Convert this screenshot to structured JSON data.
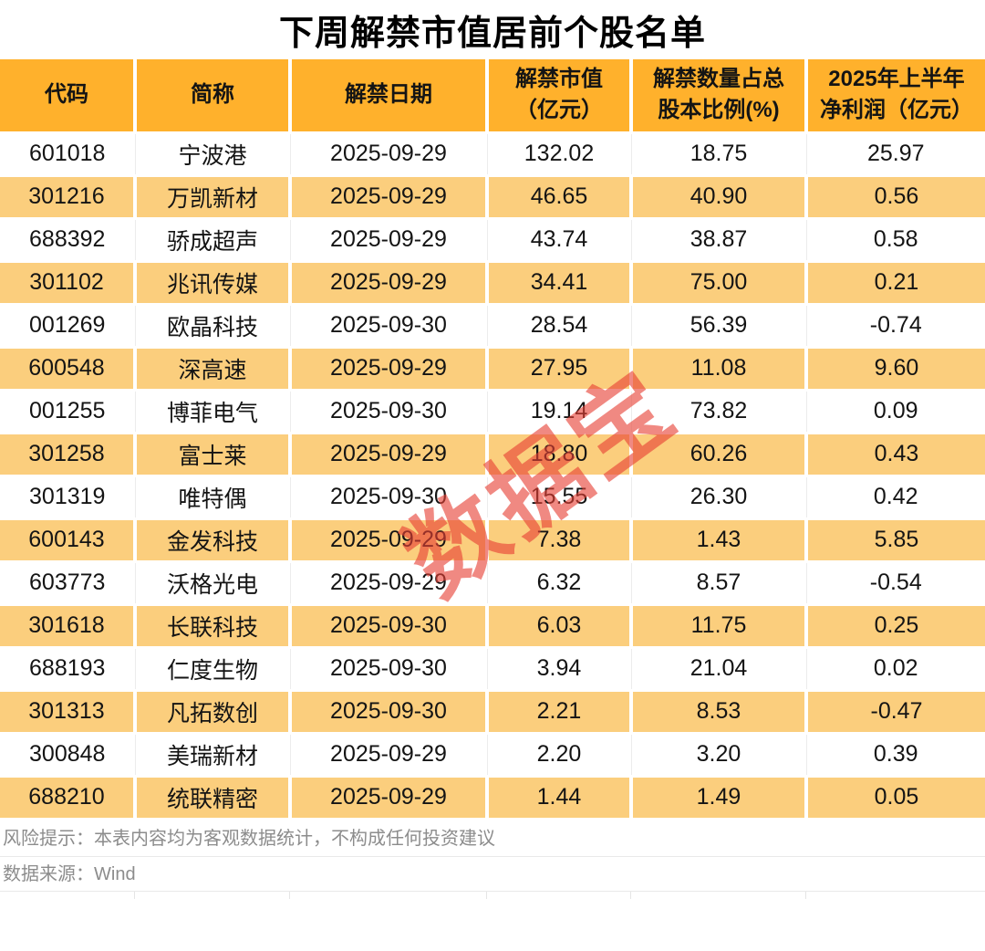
{
  "title": "下周解禁市值居前个股名单",
  "watermark": {
    "text": "数据宝"
  },
  "colors": {
    "header_bg": "#FFB12C",
    "alt_row_bg": "#FBCE7D",
    "watermark_red": "#E64036",
    "footer_text": "#8C8C8C",
    "title_text": "#000000"
  },
  "chart_data": {
    "type": "table",
    "title": "下周解禁市值居前个股名单",
    "columns": [
      "代码",
      "简称",
      "解禁日期",
      "解禁市值\n（亿元）",
      "解禁数量占总\n股本比例(%)",
      "2025年上半年\n净利润（亿元）"
    ],
    "rows": [
      [
        "601018",
        "宁波港",
        "2025-09-29",
        "132.02",
        "18.75",
        "25.97"
      ],
      [
        "301216",
        "万凯新材",
        "2025-09-29",
        "46.65",
        "40.90",
        "0.56"
      ],
      [
        "688392",
        "骄成超声",
        "2025-09-29",
        "43.74",
        "38.87",
        "0.58"
      ],
      [
        "301102",
        "兆讯传媒",
        "2025-09-29",
        "34.41",
        "75.00",
        "0.21"
      ],
      [
        "001269",
        "欧晶科技",
        "2025-09-30",
        "28.54",
        "56.39",
        "-0.74"
      ],
      [
        "600548",
        "深高速",
        "2025-09-29",
        "27.95",
        "11.08",
        "9.60"
      ],
      [
        "001255",
        "博菲电气",
        "2025-09-30",
        "19.14",
        "73.82",
        "0.09"
      ],
      [
        "301258",
        "富士莱",
        "2025-09-29",
        "18.80",
        "60.26",
        "0.43"
      ],
      [
        "301319",
        "唯特偶",
        "2025-09-30",
        "15.55",
        "26.30",
        "0.42"
      ],
      [
        "600143",
        "金发科技",
        "2025-09-29",
        "7.38",
        "1.43",
        "5.85"
      ],
      [
        "603773",
        "沃格光电",
        "2025-09-29",
        "6.32",
        "8.57",
        "-0.54"
      ],
      [
        "301618",
        "长联科技",
        "2025-09-30",
        "6.03",
        "11.75",
        "0.25"
      ],
      [
        "688193",
        "仁度生物",
        "2025-09-30",
        "3.94",
        "21.04",
        "0.02"
      ],
      [
        "301313",
        "凡拓数创",
        "2025-09-30",
        "2.21",
        "8.53",
        "-0.47"
      ],
      [
        "300848",
        "美瑞新材",
        "2025-09-29",
        "2.20",
        "3.20",
        "0.39"
      ],
      [
        "688210",
        "统联精密",
        "2025-09-29",
        "1.44",
        "1.49",
        "0.05"
      ]
    ]
  },
  "footer": {
    "risk_note": "风险提示：本表内容均为客观数据统计，不构成任何投资建议",
    "source": "数据来源：Wind"
  }
}
